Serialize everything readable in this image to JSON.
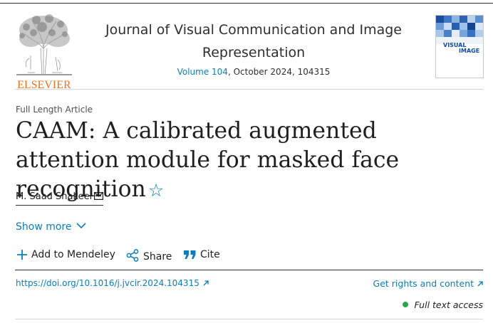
{
  "header": {
    "publisher": "ELSEVIER",
    "journal_title": "Journal of Visual Communication and Image Representation",
    "volume_link": "Volume 104",
    "issue_info": ", October 2024, 104315",
    "cover_text_line1": "VISUAL",
    "cover_text_line2": "IMAGE"
  },
  "article": {
    "type": "Full Length Article",
    "title": "CAAM: A calibrated augmented attention module for masked face recognition",
    "author": "M. Saad Shakeel",
    "show_more": "Show more"
  },
  "actions": {
    "mendeley": "Add to Mendeley",
    "share": "Share",
    "cite": "Cite"
  },
  "links": {
    "doi": "https://doi.org/10.1016/j.jvcir.2024.104315",
    "rights": "Get rights and content",
    "access": "Full text access"
  },
  "colors": {
    "link": "#0c7dbb",
    "publisher_orange": "#e9711c",
    "access_green": "#2aa651"
  },
  "icons": [
    "elsevier-tree-logo",
    "star-icon",
    "mail-icon",
    "chevron-down-icon",
    "plus-icon",
    "share-icon",
    "quote-icon",
    "external-arrow-icon"
  ]
}
